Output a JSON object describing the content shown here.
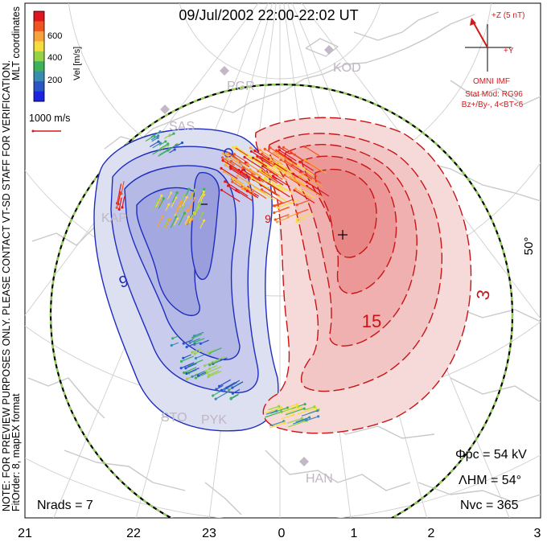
{
  "title": "09/Jul/2002 22:00-22:02 UT",
  "side_note_line1": "NOTE: FOR PREVIEW PURPOSES ONLY. PLEASE CONTACT VT-SD STAFF FOR VERIFICATION.",
  "side_note_line2": "FitOrder: 8, mapEX format",
  "coords_label": "MLT coordinates",
  "colorbar": {
    "label": "Vel [m/s]",
    "ticks": [
      "600",
      "400",
      "200"
    ],
    "colors": [
      "#e0151e",
      "#f0541e",
      "#f7a33a",
      "#f6dc3c",
      "#96d242",
      "#3cb25c",
      "#3a8bb4",
      "#2b55c6",
      "#1a22e4"
    ]
  },
  "scale_vector": {
    "label": "1000 m/s"
  },
  "imf": {
    "plus_z": "+Z (5 nT)",
    "plus_y": "+Y",
    "source": "OMNI IMF",
    "stat_mod": "Stat Mod: RG96",
    "bin": "Bz+/By-, 4<BT<6"
  },
  "stations": {
    "PGR": "PGR",
    "KOD": "KOD",
    "SAS": "SAS",
    "KAP": "KAP",
    "STO": "STO",
    "PYK": "PYK",
    "HAN": "HAN"
  },
  "contour_labels": {
    "neg_left": "9",
    "pos_center": "15",
    "pos_right": "3",
    "neg_top": "9"
  },
  "lat_label": "50°",
  "stats": {
    "phi_pc": "Φpc = 54 kV",
    "lambda_hm": "ΛHM = 54°",
    "n_vc": "Nvc = 365",
    "n_rads": "Nrads = 7"
  },
  "mlt_axis": [
    "21",
    "22",
    "23",
    "0",
    "1",
    "2",
    "3"
  ],
  "chart_data": {
    "type": "polar convection map",
    "title": "09/Jul/2002 22:00-22:02 UT",
    "cross_polar_cap_potential_kV": 54,
    "heppner_maynard_boundary_deg": 54,
    "num_vectors": 365,
    "num_radars": 7,
    "velocity_colorbar_ticks_ms": [
      200,
      400,
      600
    ],
    "scale_vector_ms": 1000,
    "mlt_ticks": [
      21,
      22,
      23,
      0,
      1,
      2,
      3
    ],
    "latitude_label_deg": 50
  }
}
